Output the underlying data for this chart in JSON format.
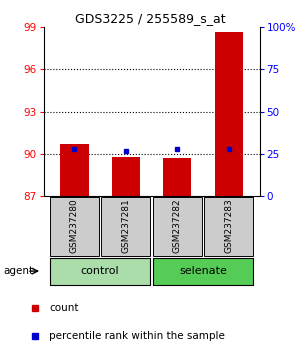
{
  "title": "GDS3225 / 255589_s_at",
  "samples": [
    "GSM237280",
    "GSM237281",
    "GSM237282",
    "GSM237283"
  ],
  "bar_values": [
    90.7,
    89.8,
    89.7,
    98.6
  ],
  "bar_bottom": 87,
  "percentile_values": [
    28,
    27,
    28,
    28
  ],
  "ylim_left": [
    87,
    99
  ],
  "ylim_right": [
    0,
    100
  ],
  "yticks_left": [
    87,
    90,
    93,
    96,
    99
  ],
  "yticks_right": [
    0,
    25,
    50,
    75,
    100
  ],
  "yticklabels_right": [
    "0",
    "25",
    "50",
    "75",
    "100%"
  ],
  "bar_color": "#cc0000",
  "percentile_color": "#0000cc",
  "sample_bg_color": "#cccccc",
  "groups": [
    {
      "label": "control",
      "color": "#aaddaa"
    },
    {
      "label": "selenate",
      "color": "#55cc55"
    }
  ],
  "agent_label": "agent",
  "legend_count_label": "count",
  "legend_pct_label": "percentile rank within the sample",
  "bar_width": 0.55,
  "gridlines": [
    90,
    93,
    96
  ]
}
